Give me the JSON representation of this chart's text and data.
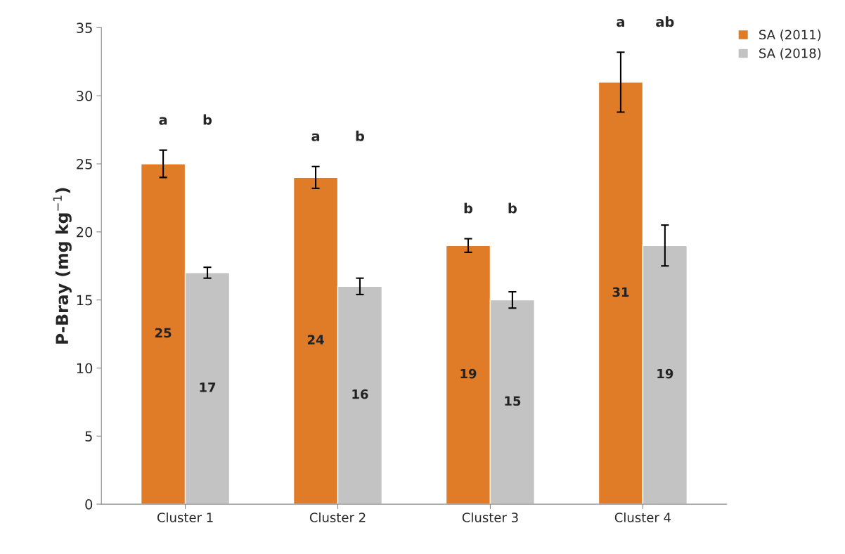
{
  "chart_data": {
    "type": "bar",
    "ylabel": "P-Bray (mg kg$^{−1}$)",
    "categories": [
      "Cluster 1",
      "Cluster 2",
      "Cluster 3",
      "Cluster 4"
    ],
    "series": [
      {
        "name": "SA (2011)",
        "color": "#e07b28",
        "values": [
          25,
          24,
          19,
          31
        ],
        "errors": [
          1.0,
          0.8,
          0.5,
          2.2
        ]
      },
      {
        "name": "SA (2018)",
        "color": "#c3c3c3",
        "values": [
          17,
          16,
          15,
          19
        ],
        "errors": [
          0.4,
          0.6,
          0.6,
          1.5
        ]
      }
    ],
    "ylim": [
      0,
      35
    ],
    "yticks": [
      0,
      5,
      10,
      15,
      20,
      25,
      30,
      35
    ],
    "grid": false,
    "legend": "top right",
    "data_labels": true,
    "annotations": [
      "a",
      "b",
      "a",
      "b",
      "b",
      "b",
      "a",
      "ab"
    ]
  }
}
